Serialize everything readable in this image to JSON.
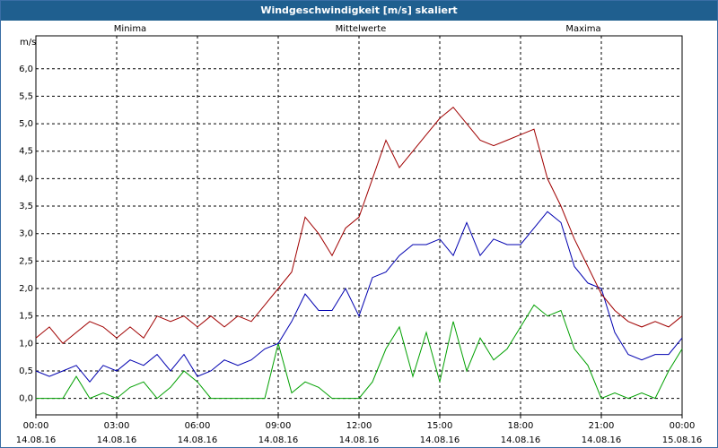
{
  "window": {
    "title": "Windgeschwindigkeit [m/s] skaliert"
  },
  "chart_data": {
    "type": "line",
    "title": "Windgeschwindigkeit [m/s] skaliert",
    "ylabel": "m/s",
    "xlabel": "",
    "ylim": [
      -0.3,
      6.6
    ],
    "xlim": [
      0,
      24
    ],
    "grid": true,
    "y_ticks": [
      {
        "v": 0.0,
        "label": "0,0"
      },
      {
        "v": 0.5,
        "label": "0,5"
      },
      {
        "v": 1.0,
        "label": "1,0"
      },
      {
        "v": 1.5,
        "label": "1,5"
      },
      {
        "v": 2.0,
        "label": "2,0"
      },
      {
        "v": 2.5,
        "label": "2,5"
      },
      {
        "v": 3.0,
        "label": "3,0"
      },
      {
        "v": 3.5,
        "label": "3,5"
      },
      {
        "v": 4.0,
        "label": "4,0"
      },
      {
        "v": 4.5,
        "label": "4,5"
      },
      {
        "v": 5.0,
        "label": "5,0"
      },
      {
        "v": 5.5,
        "label": "5,5"
      },
      {
        "v": 6.0,
        "label": "6,0"
      }
    ],
    "x_ticks": [
      {
        "h": 0,
        "time": "00:00",
        "date": "14.08.16"
      },
      {
        "h": 3,
        "time": "03:00",
        "date": "14.08.16"
      },
      {
        "h": 6,
        "time": "06:00",
        "date": "14.08.16"
      },
      {
        "h": 9,
        "time": "09:00",
        "date": "14.08.16"
      },
      {
        "h": 12,
        "time": "12:00",
        "date": "14.08.16"
      },
      {
        "h": 15,
        "time": "15:00",
        "date": "14.08.16"
      },
      {
        "h": 18,
        "time": "18:00",
        "date": "14.08.16"
      },
      {
        "h": 21,
        "time": "21:00",
        "date": "14.08.16"
      },
      {
        "h": 24,
        "time": "00:00",
        "date": "15.08.16"
      }
    ],
    "x_hours": [
      0,
      0.5,
      1,
      1.5,
      2,
      2.5,
      3,
      3.5,
      4,
      4.5,
      5,
      5.5,
      6,
      6.5,
      7,
      7.5,
      8,
      8.5,
      9,
      9.5,
      10,
      10.5,
      11,
      11.5,
      12,
      12.5,
      13,
      13.5,
      14,
      14.5,
      15,
      15.5,
      16,
      16.5,
      17,
      17.5,
      18,
      18.5,
      19,
      19.5,
      20,
      20.5,
      21,
      21.5,
      22,
      22.5,
      23,
      23.5,
      24
    ],
    "series": [
      {
        "name": "Minima",
        "color": "#00a000",
        "values": [
          0.0,
          0.0,
          0.0,
          0.4,
          0.0,
          0.1,
          0.0,
          0.2,
          0.3,
          0.0,
          0.2,
          0.5,
          0.3,
          0.0,
          0.0,
          0.0,
          0.0,
          0.0,
          1.0,
          0.1,
          0.3,
          0.2,
          0.0,
          0.0,
          0.0,
          0.3,
          0.9,
          1.3,
          0.4,
          1.2,
          0.3,
          1.4,
          0.5,
          1.1,
          0.7,
          0.9,
          1.3,
          1.7,
          1.5,
          1.6,
          0.9,
          0.6,
          0.0,
          0.1,
          0.0,
          0.1,
          0.0,
          0.5,
          0.9
        ]
      },
      {
        "name": "Mittelwerte",
        "color": "#0000b0",
        "values": [
          0.5,
          0.4,
          0.5,
          0.6,
          0.3,
          0.6,
          0.5,
          0.7,
          0.6,
          0.8,
          0.5,
          0.8,
          0.4,
          0.5,
          0.7,
          0.6,
          0.7,
          0.9,
          1.0,
          1.4,
          1.9,
          1.6,
          1.6,
          2.0,
          1.5,
          2.2,
          2.3,
          2.6,
          2.8,
          2.8,
          2.9,
          2.6,
          3.2,
          2.6,
          2.9,
          2.8,
          2.8,
          3.1,
          3.4,
          3.2,
          2.4,
          2.1,
          2.0,
          1.2,
          0.8,
          0.7,
          0.8,
          0.8,
          1.1
        ]
      },
      {
        "name": "Maxima",
        "color": "#a00000",
        "values": [
          1.1,
          1.3,
          1.0,
          1.2,
          1.4,
          1.3,
          1.1,
          1.3,
          1.1,
          1.5,
          1.4,
          1.5,
          1.3,
          1.5,
          1.3,
          1.5,
          1.4,
          1.7,
          2.0,
          2.3,
          3.3,
          3.0,
          2.6,
          3.1,
          3.3,
          4.0,
          4.7,
          4.2,
          4.5,
          4.8,
          5.1,
          5.3,
          5.0,
          4.7,
          4.6,
          4.7,
          4.8,
          4.9,
          4.0,
          3.5,
          2.9,
          2.4,
          1.9,
          1.6,
          1.4,
          1.3,
          1.4,
          1.3,
          1.5
        ]
      }
    ]
  }
}
